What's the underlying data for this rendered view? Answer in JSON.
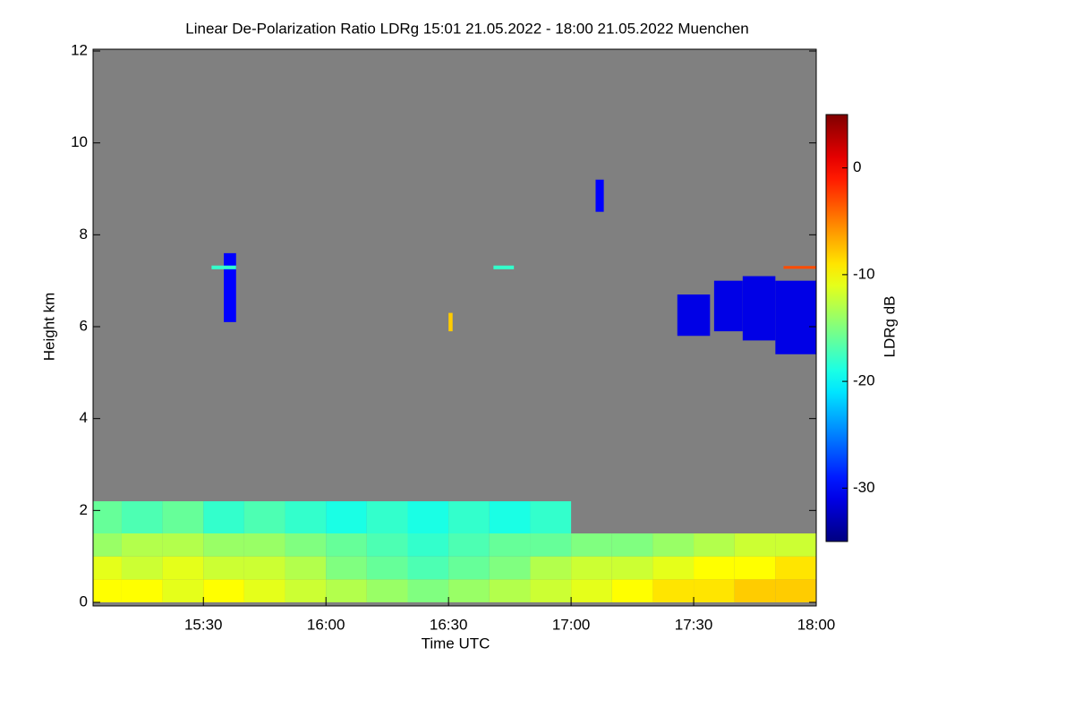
{
  "chart_data": {
    "type": "heatmap",
    "title": "Linear De-Polarization Ratio LDRg   15:01 21.05.2022 - 18:00 21.05.2022 Muenchen",
    "x_label": "Time UTC",
    "y_label": "Height km",
    "colorbar_label": "LDRg dB",
    "xlim": [
      903,
      1080
    ],
    "xticks": [
      {
        "value": 930,
        "label": "15:30"
      },
      {
        "value": 960,
        "label": "16:00"
      },
      {
        "value": 990,
        "label": "16:30"
      },
      {
        "value": 1020,
        "label": "17:00"
      },
      {
        "value": 1050,
        "label": "17:30"
      },
      {
        "value": 1080,
        "label": "18:00"
      }
    ],
    "ylim": [
      0,
      12
    ],
    "yticks": [
      0,
      2,
      4,
      6,
      8,
      10,
      12
    ],
    "clim": [
      -35,
      5
    ],
    "cticks": [
      0,
      -10,
      -20,
      -30
    ],
    "background": "#808080",
    "x_edges": [
      903,
      910,
      920,
      930,
      940,
      950,
      960,
      970,
      980,
      990,
      1000,
      1010,
      1020,
      1030,
      1040,
      1050,
      1060,
      1070,
      1080
    ],
    "y_edges": [
      0,
      0.5,
      1,
      1.5,
      2.2
    ],
    "values": [
      [
        -10,
        -10,
        -11,
        -10,
        -11,
        -12,
        -13,
        -14,
        -15,
        -14,
        -13,
        -12,
        -11,
        -10,
        -9,
        -9,
        -8,
        -8
      ],
      [
        -11,
        -12,
        -11,
        -12,
        -12,
        -13,
        -15,
        -16,
        -17,
        -16,
        -15,
        -13,
        -12,
        -12,
        -11,
        -10,
        -10,
        -9
      ],
      [
        -14,
        -13,
        -13,
        -14,
        -14,
        -15,
        -16,
        -17,
        -18,
        -17,
        -16,
        -16,
        -15,
        -15,
        -14,
        -13,
        -12,
        -12
      ],
      [
        -16,
        -17,
        -16,
        -18,
        -17,
        -18,
        -19,
        -18,
        -19,
        -18,
        -19,
        -18,
        null,
        null,
        null,
        null,
        null,
        null
      ]
    ],
    "features": {
      "x0": [
        935,
        932,
        1001,
        1026,
        1046,
        1055,
        1062,
        1070,
        1072,
        990
      ],
      "x1": [
        938,
        938,
        1006,
        1028,
        1054,
        1062,
        1070,
        1080,
        1080,
        991
      ],
      "y0": [
        6.1,
        7.25,
        7.25,
        8.5,
        5.8,
        5.9,
        5.7,
        5.4,
        7.26,
        5.9
      ],
      "y1": [
        7.6,
        7.33,
        7.33,
        9.2,
        6.7,
        7.0,
        7.1,
        7.0,
        7.32,
        6.3
      ],
      "values": [
        -30,
        -18,
        -18,
        -30,
        -31,
        -31,
        -31,
        -31,
        -3,
        -8
      ]
    }
  }
}
